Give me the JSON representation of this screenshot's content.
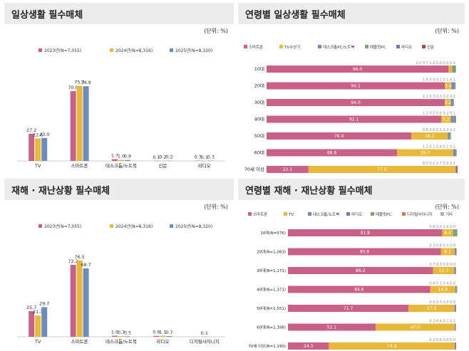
{
  "colors": {
    "smartphone": "#c96186",
    "tv": "#e8b83a",
    "desktop": "#6d8cbc",
    "tablet": "#7aa56d",
    "radio": "#8a6fb0",
    "paper": "#b04844",
    "news": "#9aa2c9",
    "disaster_text": "#d07a66",
    "etc": "#c9a0c0",
    "y2023": "#c96186",
    "y2024": "#e8b83a",
    "y2025": "#6d8cbc"
  },
  "panels": {
    "p1": {
      "title": "일상생활 필수매체",
      "unit": "(단위: %)"
    },
    "p2": {
      "title": "연령별 일상생활 필수매체",
      "unit": "(단위: %)"
    },
    "p3": {
      "title": "재해 · 재난상황 필수매체",
      "unit": "(단위: %)"
    },
    "p4": {
      "title": "연령별 재해 · 재난상황 필수매체",
      "unit": "(단위: %)"
    }
  },
  "chart_data": [
    {
      "id": "daily_media",
      "type": "bar",
      "title": "일상생활 필수매체",
      "unit": "(단위: %)",
      "categories": [
        "TV",
        "스마트폰",
        "데스크톱/노트북",
        "신문",
        "라디오"
      ],
      "series": [
        {
          "name": "2023년(N=7,055)",
          "values": [
            27.2,
            70.0,
            1.7,
            0.1,
            0.3
          ]
        },
        {
          "name": "2024년(N=8,316)",
          "values": [
            22.6,
            75.3,
            1.0,
            0.2,
            0.1
          ]
        },
        {
          "name": "2025년(N=8,320)",
          "values": [
            23.0,
            74.9,
            0.9,
            0.2,
            0.3
          ]
        }
      ],
      "ylim": [
        0,
        100
      ]
    },
    {
      "id": "daily_media_by_age",
      "type": "bar",
      "title": "연령별 일상생활 필수매체",
      "unit": "(단위: %)",
      "stacked": true,
      "horizontal": true,
      "legend": [
        "스마트폰",
        "TV수상기",
        "데스크톱PC/노트북",
        "태블릿PC",
        "라디오",
        "신문"
      ],
      "categories": [
        "10대",
        "20대",
        "30대",
        "40대",
        "50대",
        "60대",
        "70세 이상"
      ],
      "series": [
        {
          "name": "스마트폰",
          "values": [
            96.0,
            94.1,
            94.0,
            92.1,
            76.4,
            68.8,
            22.1
          ]
        },
        {
          "name": "TV수상기",
          "values": [
            2.0,
            3.4,
            3.2,
            5.2,
            19.2,
            29.7,
            77.5
          ]
        },
        {
          "name": "데스크톱PC/노트북",
          "values": [
            0.7,
            1.6,
            1.1,
            1.3,
            0.8,
            1.2,
            0.1
          ]
        },
        {
          "name": "태블릿PC",
          "values": [
            1.2,
            0.4,
            0.3,
            0.5,
            0.6,
            0.1,
            0.1
          ]
        },
        {
          "name": "라디오",
          "values": [
            0.0,
            0.1,
            0.2,
            0.6,
            0.1,
            0.4,
            0.7
          ]
        },
        {
          "name": "신문",
          "values": [
            0.0,
            0.1,
            0.0,
            0.2,
            0.1,
            0.0,
            0.3
          ]
        }
      ],
      "top_labels": [
        "2.0 0.7 1.2 0.0 0.0 0.1",
        "1.6 0.4 0.1 0.1 0.1",
        "1.1 0.3 0.2 0.2 0.2",
        "1.3 0.5 0.6 0.2 0.1",
        "0.8 0.6 0.1 0.3 0.1",
        "1.2 0.1 0.4 0.1 0.1",
        "0.0 0.1 0.7 0.3 0.1"
      ],
      "xlim": [
        0,
        100
      ]
    },
    {
      "id": "disaster_media",
      "type": "bar",
      "title": "재해 · 재난상황 필수매체",
      "unit": "(단위: %)",
      "categories": [
        "TV",
        "스마트폰",
        "데스크톱/노트북",
        "라디오",
        "디지털사이니지"
      ],
      "series": [
        {
          "name": "2023년(N=7,055)",
          "values": [
            25.7,
            72.2,
            1.0,
            0.9,
            null
          ]
        },
        {
          "name": "2024년(N=8,316)",
          "values": [
            21.3,
            76.5,
            0.7,
            1.1,
            null
          ]
        },
        {
          "name": "2025년(N=8,320)",
          "values": [
            29.7,
            68.7,
            0.5,
            0.7,
            0.1
          ]
        }
      ],
      "ylim": [
        0,
        100
      ]
    },
    {
      "id": "disaster_media_by_age",
      "type": "bar",
      "title": "연령별 재해 · 재난상황 필수매체",
      "unit": "(단위: %)",
      "stacked": true,
      "horizontal": true,
      "legend": [
        "스마트폰",
        "TV",
        "데스크톱/노트북",
        "라디오",
        "태블릿PC",
        "디지털사이니지",
        "기타"
      ],
      "categories": [
        "10대(N=576)",
        "20대(N=1,063)",
        "30대(N=1,171)",
        "40대(N=1,371)",
        "50대(N=1,551)",
        "60대(N=1,398)",
        "70세 이상(N=1,190)"
      ],
      "series": [
        {
          "name": "스마트폰",
          "values": [
            91.8,
            90.9,
            86.2,
            84.6,
            71.7,
            52.1,
            24.3
          ]
        },
        {
          "name": "TV",
          "values": [
            6.4,
            8.1,
            12.7,
            14.9,
            27.3,
            47.0,
            74.9
          ]
        },
        {
          "name": "데스크톱/노트북",
          "values": [
            0.6,
            0.3,
            0.7,
            0.6,
            0.5,
            0.2,
            0.2
          ]
        },
        {
          "name": "라디오",
          "values": [
            0.0,
            0.8,
            0.3,
            0.1,
            0.5,
            0.4,
            0.6
          ]
        },
        {
          "name": "태블릿PC",
          "values": [
            1.9,
            0.2,
            0.0,
            0.4,
            0.0,
            0.1,
            0.0
          ]
        },
        {
          "name": "디지털사이니지",
          "values": [
            0.0,
            0.0,
            0.0,
            0.0,
            0.0,
            0.1,
            0.0
          ]
        },
        {
          "name": "기타",
          "values": [
            0.0,
            0.0,
            0.0,
            0.0,
            0.0,
            0.0,
            0.0
          ]
        }
      ],
      "top_labels": [
        "0.6 0.0 1.9 0.0",
        "0.3 0.8 0.2 0.0",
        "0.7 0.3 0.0 0.0",
        "0.6 0.1 0.4 0.0",
        "0.5 0.5 0.0 0.0",
        "0.2 0.4 0.1 0.1",
        "0.2 0.6 0.0 0.0"
      ],
      "xlim": [
        0,
        100
      ]
    }
  ]
}
